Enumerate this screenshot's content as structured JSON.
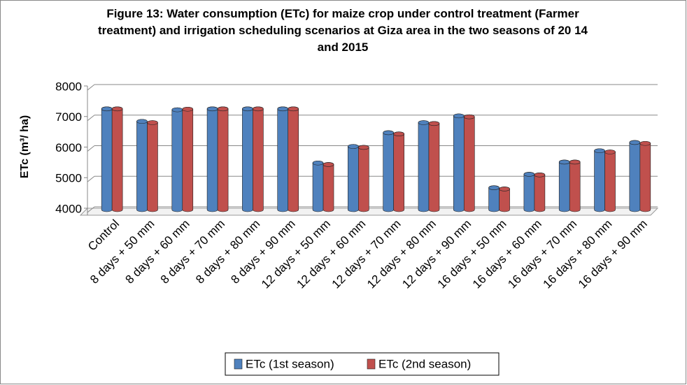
{
  "chart_data": {
    "type": "bar",
    "title": "Figure 13: Water consumption (ETc) for maize crop under control treatment (Farmer treatment) and irrigation scheduling scenarios at Giza area in the two seasons of 20 14 and 2015",
    "ylabel": "ETc (m³/ ha)",
    "categories": [
      "Control",
      "8 days + 50 mm",
      "8 days + 60 mm",
      "8 days + 70 mm",
      "8 days + 80 mm",
      "8 days + 90 mm",
      "12 days + 50 mm",
      "12 days + 60 mm",
      "12 days + 70 mm",
      "12 days + 80 mm",
      "12 days + 90 mm",
      "16 days + 50 mm",
      "16 days + 60 mm",
      "16 days + 70 mm",
      "16 days + 80 mm",
      "16 days + 90 mm"
    ],
    "series": [
      {
        "name": "ETc (1st season)",
        "color": "#4f81bd",
        "values": [
          7250,
          6840,
          7220,
          7250,
          7250,
          7250,
          5480,
          6020,
          6470,
          6800,
          7020,
          4670,
          5110,
          5510,
          5880,
          6150
        ]
      },
      {
        "name": "ETc (2nd season)",
        "color": "#c0504d",
        "values": [
          7250,
          6800,
          7240,
          7250,
          7250,
          7250,
          5430,
          5990,
          6430,
          6770,
          6990,
          4630,
          5090,
          5510,
          5840,
          6120
        ]
      }
    ],
    "ylim": [
      4000,
      8000
    ],
    "yticks": [
      4000,
      5000,
      6000,
      7000,
      8000
    ],
    "grid": true,
    "legend": "bottom"
  }
}
